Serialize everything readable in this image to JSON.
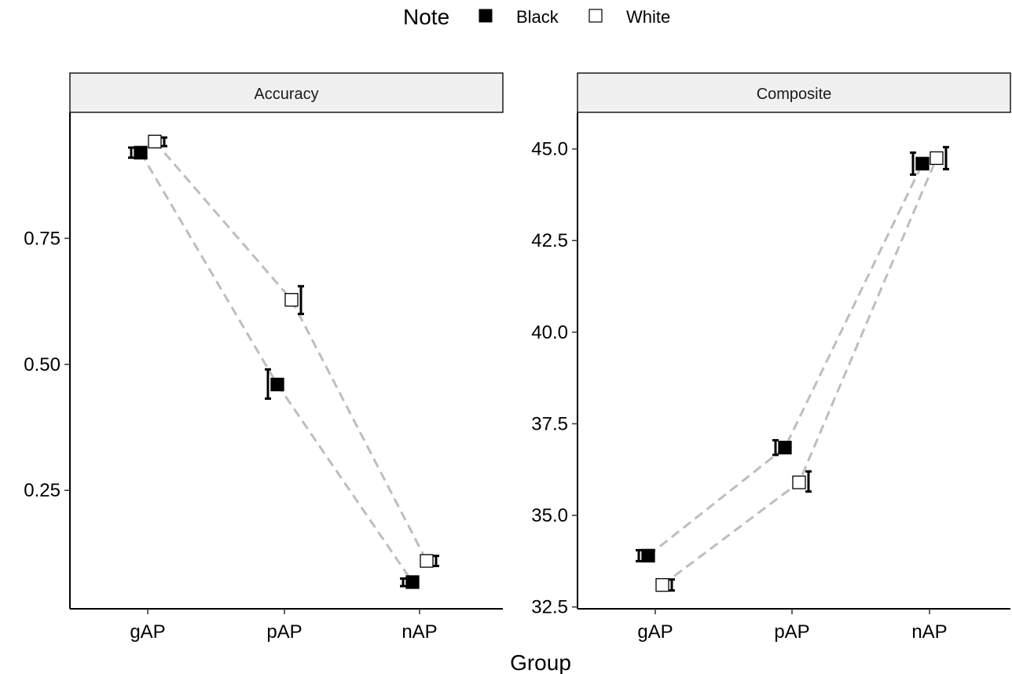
{
  "chart_data": {
    "type": "scatter",
    "legend": {
      "title": "Note",
      "position": "top",
      "entries": [
        {
          "label": "Black",
          "fill": "#000000"
        },
        {
          "label": "White",
          "fill": "#ffffff"
        }
      ]
    },
    "xlabel": "Group",
    "categories": [
      "gAP",
      "pAP",
      "nAP"
    ],
    "connector_color": "#bebebe",
    "panels": [
      {
        "strip": "Accuracy",
        "ylim": [
          0.015,
          1.0
        ],
        "yticks": [
          0.25,
          0.5,
          0.75
        ],
        "ytick_labels": [
          "0.25",
          "0.50",
          "0.75"
        ],
        "series": [
          {
            "name": "Black",
            "values": [
              0.92,
              0.46,
              0.068
            ],
            "err_low": [
              0.91,
              0.432,
              0.06
            ],
            "err_high": [
              0.93,
              0.49,
              0.075
            ]
          },
          {
            "name": "White",
            "values": [
              0.942,
              0.628,
              0.11
            ],
            "err_low": [
              0.933,
              0.6,
              0.1
            ],
            "err_high": [
              0.95,
              0.655,
              0.12
            ]
          }
        ]
      },
      {
        "strip": "Composite",
        "ylim": [
          32.45,
          46.0
        ],
        "yticks": [
          32.5,
          35.0,
          37.5,
          40.0,
          42.5,
          45.0
        ],
        "ytick_labels": [
          "32.5",
          "35.0",
          "37.5",
          "40.0",
          "42.5",
          "45.0"
        ],
        "series": [
          {
            "name": "Black",
            "values": [
              33.9,
              36.85,
              44.6
            ],
            "err_low": [
              33.75,
              36.65,
              44.3
            ],
            "err_high": [
              34.05,
              37.05,
              44.9
            ]
          },
          {
            "name": "White",
            "values": [
              33.1,
              35.9,
              44.75
            ],
            "err_low": [
              32.95,
              35.65,
              44.45
            ],
            "err_high": [
              33.25,
              36.2,
              45.05
            ]
          }
        ]
      }
    ]
  }
}
